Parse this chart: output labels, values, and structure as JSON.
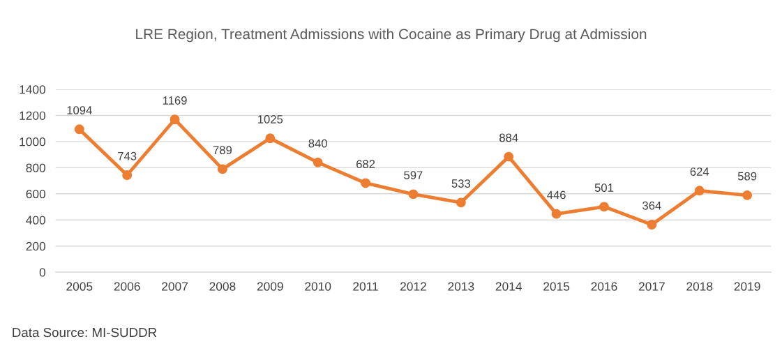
{
  "chart_data": {
    "type": "line",
    "title": "LRE Region, Treatment Admissions with Cocaine as Primary Drug at Admission",
    "categories": [
      "2005",
      "2006",
      "2007",
      "2008",
      "2009",
      "2010",
      "2011",
      "2012",
      "2013",
      "2014",
      "2015",
      "2016",
      "2017",
      "2018",
      "2019"
    ],
    "series": [
      {
        "color": "#ed7d31",
        "values": [
          1094,
          743,
          1169,
          789,
          1025,
          840,
          682,
          597,
          533,
          884,
          446,
          501,
          364,
          624,
          589
        ]
      }
    ],
    "ylim": [
      0,
      1400
    ],
    "yticks": [
      0,
      200,
      400,
      600,
      800,
      1000,
      1200,
      1400
    ],
    "grid": "y",
    "legend": false,
    "marker": "circle",
    "line_style": "solid",
    "data_labels": true,
    "annotations": [
      "Data Source: MI-SUDDR"
    ]
  }
}
